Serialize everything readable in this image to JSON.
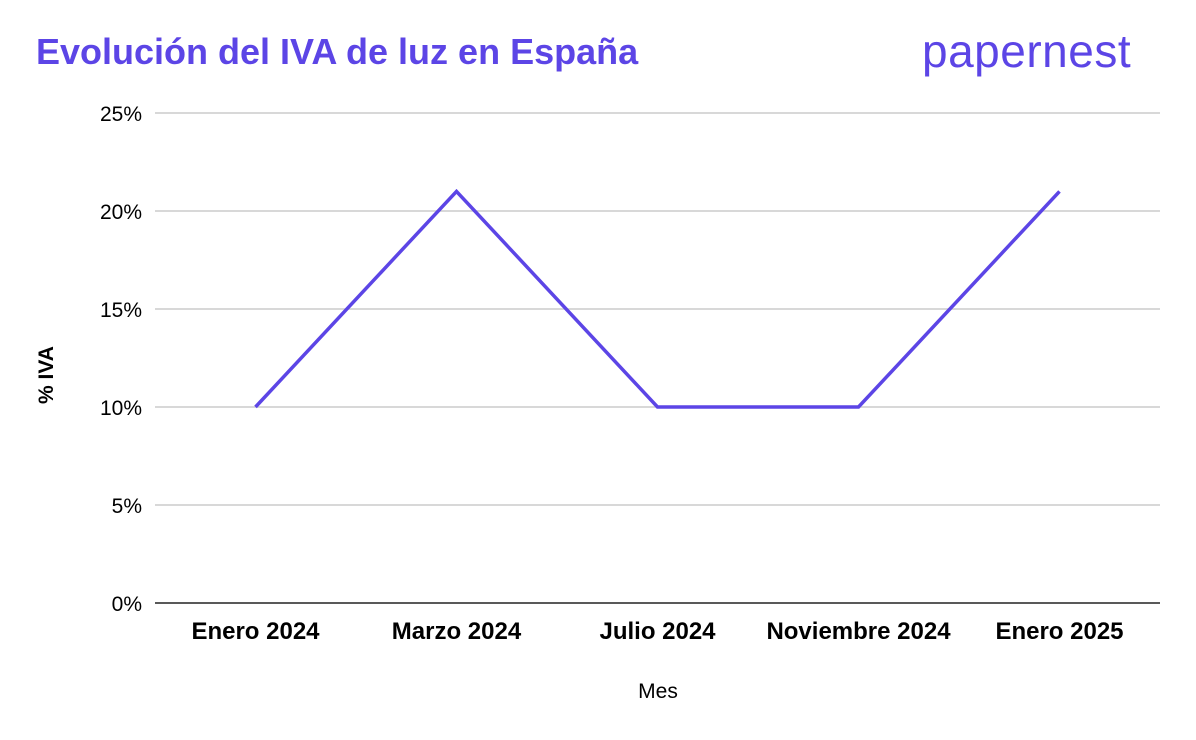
{
  "title": "Evolución del IVA de luz en España",
  "brand": "papernest",
  "colors": {
    "accent": "#5c45e6",
    "line": "#5c45e6",
    "grid": "#cccccc",
    "axis": "#222222"
  },
  "chart_data": {
    "type": "line",
    "title": "Evolución del IVA de luz en España",
    "xlabel": "Mes",
    "ylabel": "% IVA",
    "categories": [
      "Enero 2024",
      "Marzo 2024",
      "Julio 2024",
      "Noviembre 2024",
      "Enero 2025"
    ],
    "series": [
      {
        "values": [
          10,
          21,
          10,
          10,
          21
        ]
      }
    ],
    "ylim": [
      0,
      25
    ],
    "yticks": [
      0,
      5,
      10,
      15,
      20,
      25
    ],
    "ytick_labels": [
      "0%",
      "5%",
      "10%",
      "15%",
      "20%",
      "25%"
    ],
    "grid": true,
    "legend": "none"
  }
}
